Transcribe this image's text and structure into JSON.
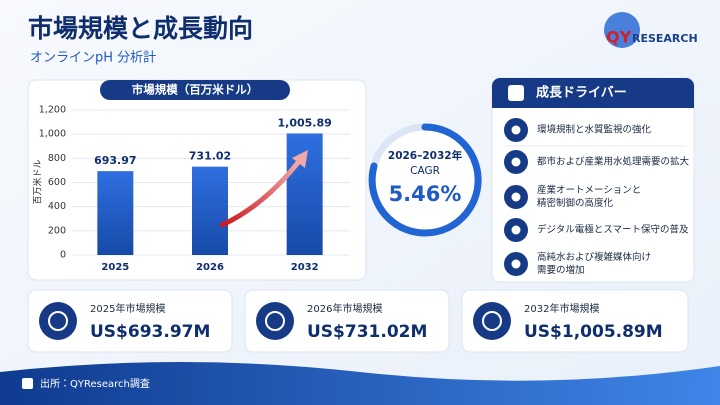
{
  "header": {
    "title": "市場規模と成長動向",
    "subtitle": "オンラインpH 分析計",
    "logo_mark": "QY",
    "logo_text": "RESEARCH"
  },
  "chart_data": {
    "type": "bar",
    "title": "市場規模（百万米ドル）",
    "y_label": "百万米ドル",
    "categories": [
      "2025",
      "2026",
      "2032"
    ],
    "values": [
      693.97,
      731.02,
      1005.89
    ],
    "value_labels": [
      "693.97",
      "731.02",
      "1,005.89"
    ],
    "color": "#1f5bc4",
    "ylim": [
      0,
      1200
    ],
    "yticks": [
      0,
      200,
      400,
      600,
      800,
      {
        "value": 1000,
        "label": "1,000"
      },
      {
        "value": 1200,
        "label": "1,200"
      }
    ],
    "grid": true
  },
  "cagr": {
    "period": "2026–2032年",
    "label": "CAGR",
    "value": "5.46%"
  },
  "drivers": {
    "title": "成長ドライバー",
    "items": [
      [
        "環境規制と水質監視の強化"
      ],
      [
        "都市および産業用水処理需要の拡大"
      ],
      [
        "産業オートメーションと",
        "精密制御の高度化"
      ],
      [
        "デジタル電極とスマート保守の普及"
      ],
      [
        "高純水および複雑媒体向け",
        "需要の増加"
      ]
    ]
  },
  "kpis": [
    {
      "label": "2025年市場規模",
      "value": "US$693.97M"
    },
    {
      "label": "2026年市場規模",
      "value": "US$731.02M"
    },
    {
      "label": "2032年市場規模",
      "value": "US$1,005.89M"
    }
  ],
  "source": "出所：QYResearch調査"
}
